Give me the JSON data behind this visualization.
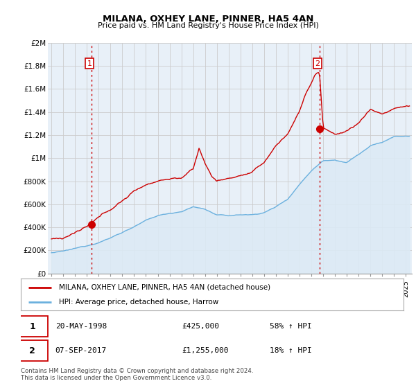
{
  "title": "MILANA, OXHEY LANE, PINNER, HA5 4AN",
  "subtitle": "Price paid vs. HM Land Registry's House Price Index (HPI)",
  "ylabel_ticks": [
    "£0",
    "£200K",
    "£400K",
    "£600K",
    "£800K",
    "£1M",
    "£1.2M",
    "£1.4M",
    "£1.6M",
    "£1.8M",
    "£2M"
  ],
  "ytick_values": [
    0,
    200000,
    400000,
    600000,
    800000,
    1000000,
    1200000,
    1400000,
    1600000,
    1800000,
    2000000
  ],
  "ylim": [
    0,
    2000000
  ],
  "xlim_start": 1994.7,
  "xlim_end": 2025.5,
  "xtick_years": [
    1995,
    1996,
    1997,
    1998,
    1999,
    2000,
    2001,
    2002,
    2003,
    2004,
    2005,
    2006,
    2007,
    2008,
    2009,
    2010,
    2011,
    2012,
    2013,
    2014,
    2015,
    2016,
    2017,
    2018,
    2019,
    2020,
    2021,
    2022,
    2023,
    2024,
    2025
  ],
  "hpi_color": "#6ab0de",
  "hpi_fill_color": "#dceaf5",
  "price_color": "#cc0000",
  "vline_color": "#cc0000",
  "plot_bg_color": "#e8f0f8",
  "marker1_year": 1998.38,
  "marker1_price": 425000,
  "marker2_year": 2017.68,
  "marker2_price": 1255000,
  "legend_label1": "MILANA, OXHEY LANE, PINNER, HA5 4AN (detached house)",
  "legend_label2": "HPI: Average price, detached house, Harrow",
  "annotation1_num": "1",
  "annotation1_date": "20-MAY-1998",
  "annotation1_price": "£425,000",
  "annotation1_hpi": "58% ↑ HPI",
  "annotation2_num": "2",
  "annotation2_date": "07-SEP-2017",
  "annotation2_price": "£1,255,000",
  "annotation2_hpi": "18% ↑ HPI",
  "footer1": "Contains HM Land Registry data © Crown copyright and database right 2024.",
  "footer2": "This data is licensed under the Open Government Licence v3.0.",
  "bg_color": "#ffffff",
  "grid_color": "#cccccc"
}
